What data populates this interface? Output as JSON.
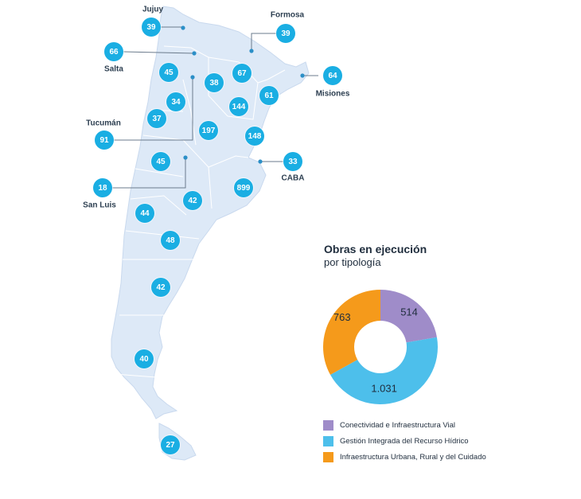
{
  "chart_data": [
    {
      "type": "map",
      "values": [
        {
          "id": "jujuy",
          "label": "Jujuy",
          "value": "39"
        },
        {
          "id": "formosa",
          "label": "Formosa",
          "value": "39"
        },
        {
          "id": "salta",
          "label": "Salta",
          "value": "66"
        },
        {
          "id": "misiones",
          "label": "Misiones",
          "value": "64"
        },
        {
          "id": "tucuman",
          "label": "Tucumán",
          "value": "91"
        },
        {
          "id": "caba",
          "label": "CABA",
          "value": "33"
        },
        {
          "id": "san-luis",
          "label": "San Luis",
          "value": "18"
        },
        {
          "id": "chaco",
          "label": "",
          "value": "67"
        },
        {
          "id": "santiago",
          "label": "",
          "value": "38"
        },
        {
          "id": "catamarca",
          "label": "",
          "value": "45"
        },
        {
          "id": "la-rioja",
          "label": "",
          "value": "34"
        },
        {
          "id": "corrientes",
          "label": "",
          "value": "61"
        },
        {
          "id": "santa-fe",
          "label": "",
          "value": "144"
        },
        {
          "id": "san-juan",
          "label": "",
          "value": "37"
        },
        {
          "id": "cordoba",
          "label": "",
          "value": "197"
        },
        {
          "id": "entre-rios",
          "label": "",
          "value": "148"
        },
        {
          "id": "mendoza",
          "label": "",
          "value": "45"
        },
        {
          "id": "buenos-aires",
          "label": "",
          "value": "899"
        },
        {
          "id": "la-pampa",
          "label": "",
          "value": "42"
        },
        {
          "id": "neuquen",
          "label": "",
          "value": "44"
        },
        {
          "id": "rio-negro",
          "label": "",
          "value": "48"
        },
        {
          "id": "chubut",
          "label": "",
          "value": "42"
        },
        {
          "id": "santa-cruz",
          "label": "",
          "value": "40"
        },
        {
          "id": "tierra-del-fuego",
          "label": "",
          "value": "27"
        }
      ]
    },
    {
      "type": "pie",
      "title": "Obras en ejecución",
      "subtitle": "por tipología",
      "series": [
        {
          "name": "Conectividad e Infraestructura Vial",
          "value": 514,
          "label": "514",
          "color": "#9f8cc9"
        },
        {
          "name": "Gestión Integrada del Recurso Hídrico",
          "value": 1031,
          "label": "1.031",
          "color": "#4dbfeb"
        },
        {
          "name": "Infraestructura Urbana, Rural y del Cuidado",
          "value": 763,
          "label": "763",
          "color": "#f59a1b"
        }
      ]
    }
  ],
  "colors": {
    "map_fill": "#dde9f7",
    "map_border": "#ffffff",
    "bubble": "#1aaee3",
    "leader": "#6b7b8c"
  }
}
